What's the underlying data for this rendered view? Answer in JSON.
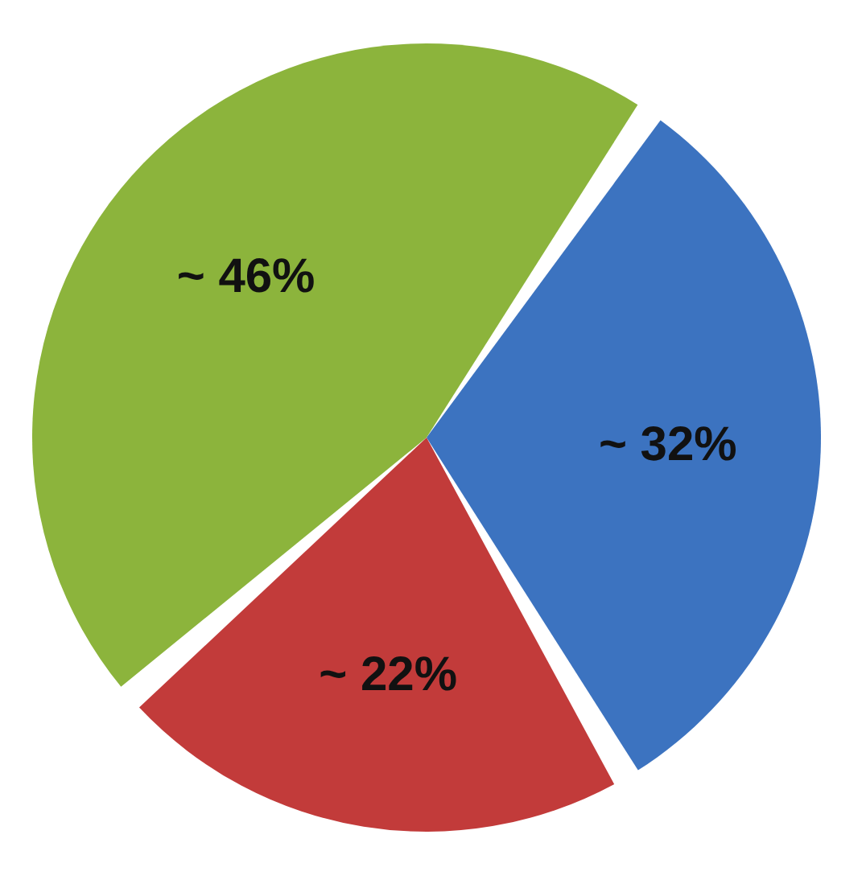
{
  "chart_data": {
    "type": "pie",
    "categories": [
      null,
      null,
      null
    ],
    "values": [
      32,
      22,
      46
    ],
    "colors": [
      "#3c73c0",
      "#c23b3a",
      "#8cb43c"
    ],
    "value_labels": [
      "~ 32%",
      "~ 22%",
      "~ 46%"
    ]
  }
}
